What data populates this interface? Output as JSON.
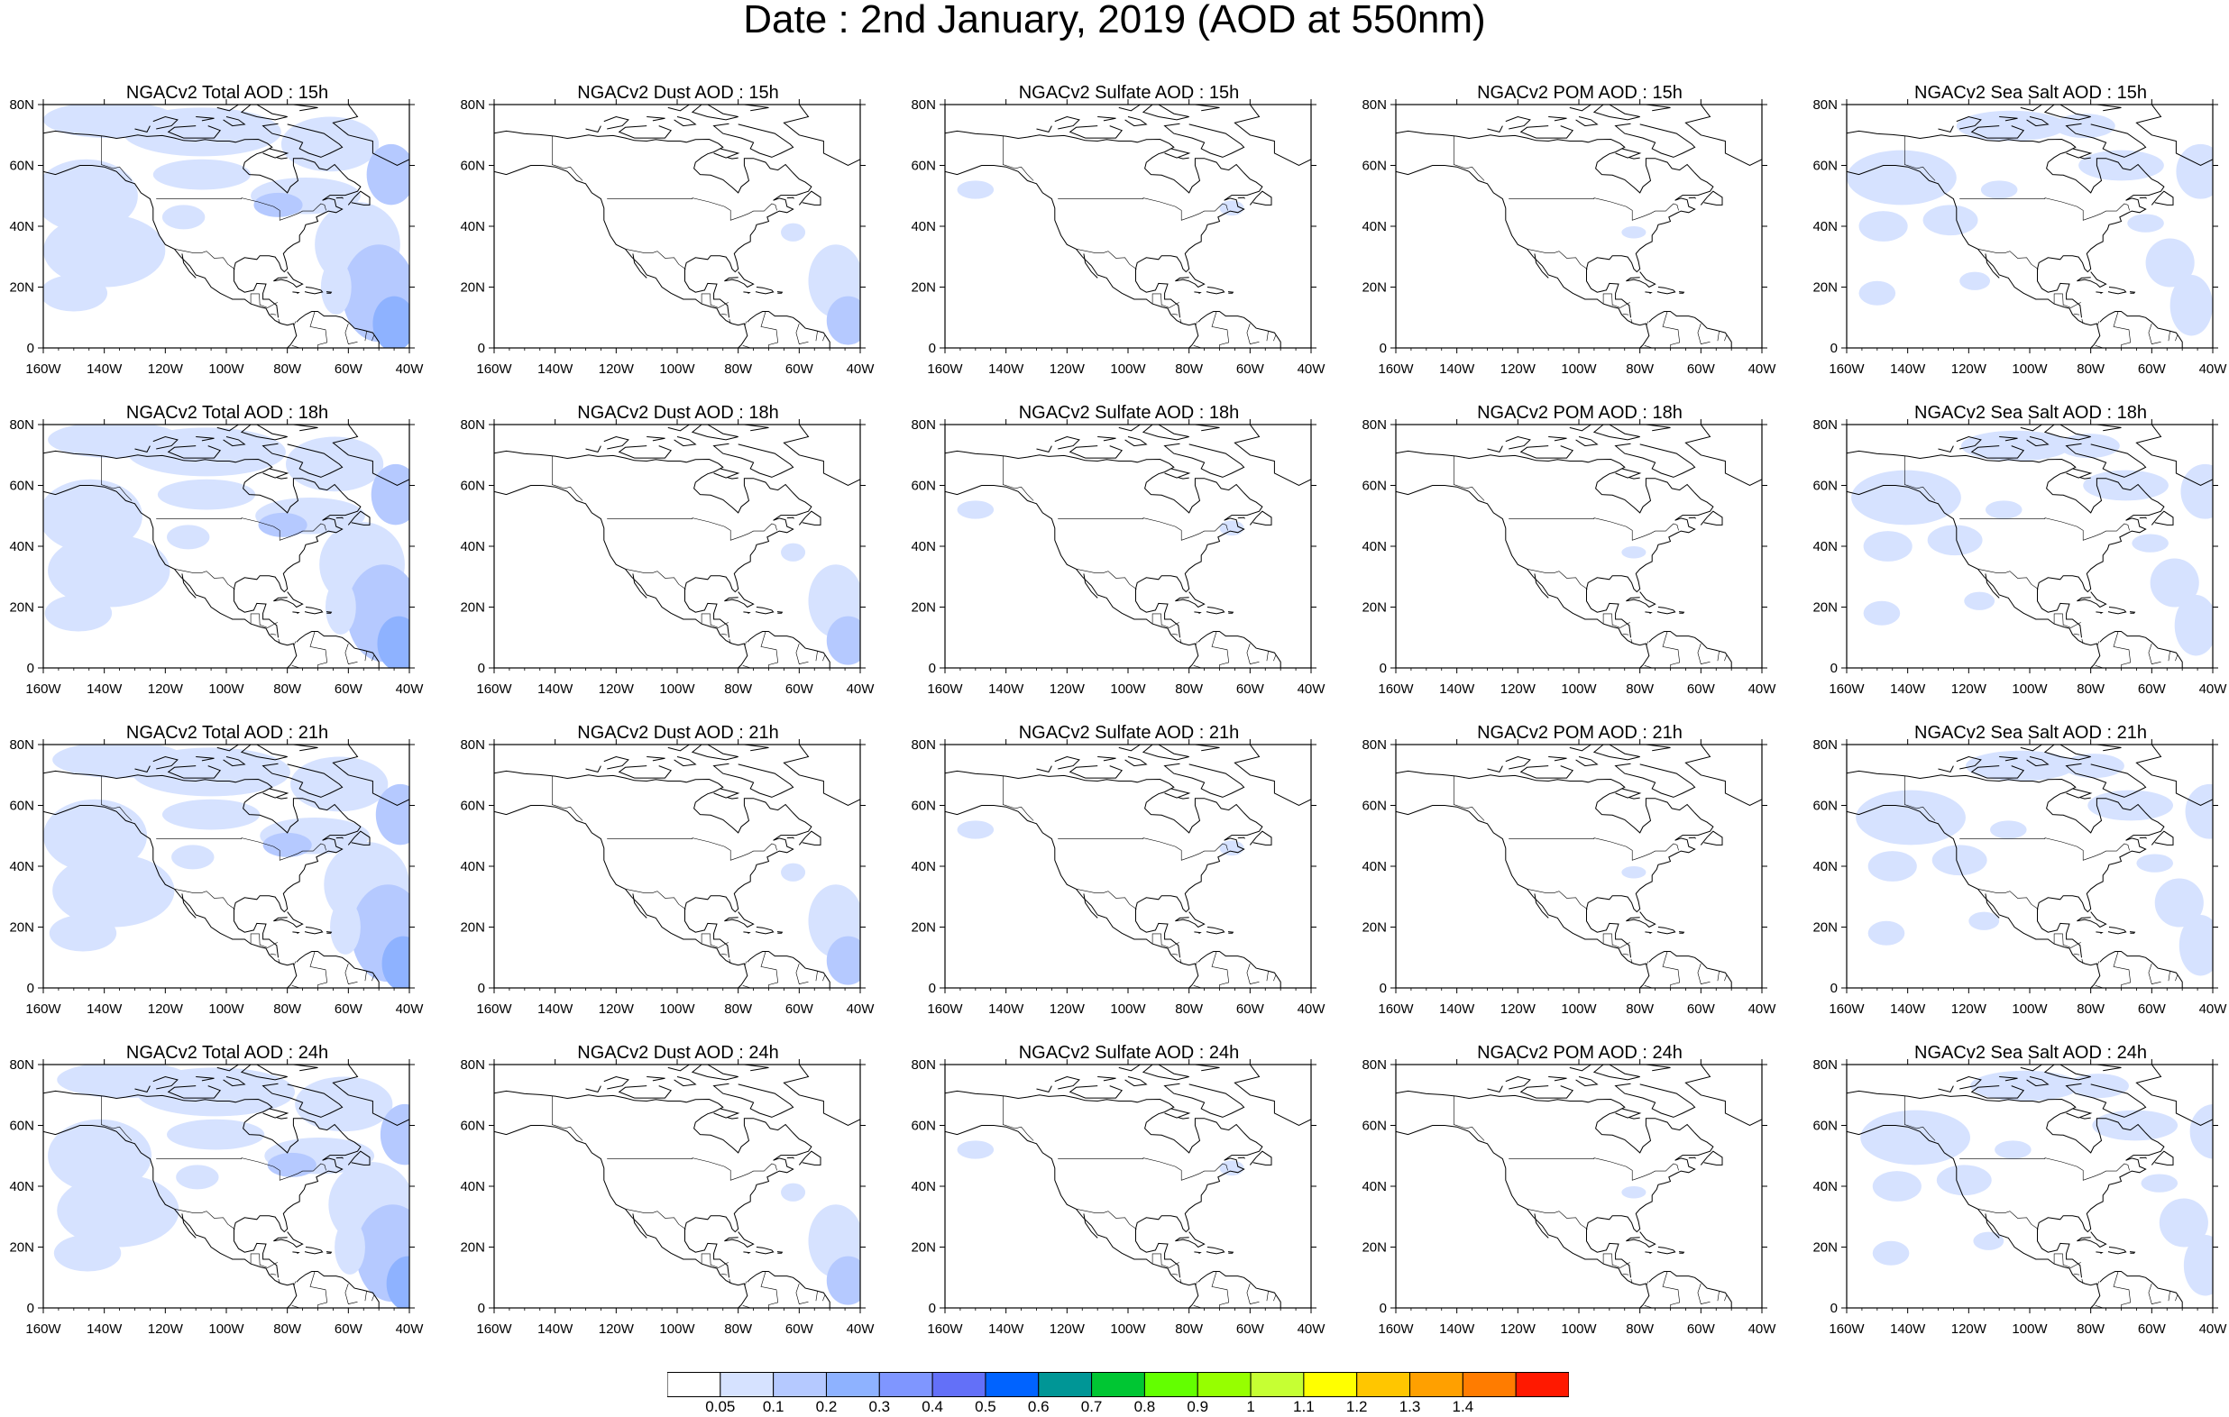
{
  "title": "Date : 2nd January, 2019 (AOD at 550nm)",
  "panels": [
    {
      "title": "NGACv2 Total AOD : 15h",
      "species": "total",
      "hour": "15h"
    },
    {
      "title": "NGACv2 Dust AOD : 15h",
      "species": "dust",
      "hour": "15h"
    },
    {
      "title": "NGACv2 Sulfate AOD : 15h",
      "species": "sulfate",
      "hour": "15h"
    },
    {
      "title": "NGACv2 POM AOD : 15h",
      "species": "pom",
      "hour": "15h"
    },
    {
      "title": "NGACv2 Sea Salt AOD : 15h",
      "species": "seasalt",
      "hour": "15h"
    },
    {
      "title": "NGACv2 Total AOD : 18h",
      "species": "total",
      "hour": "18h"
    },
    {
      "title": "NGACv2 Dust AOD : 18h",
      "species": "dust",
      "hour": "18h"
    },
    {
      "title": "NGACv2 Sulfate AOD : 18h",
      "species": "sulfate",
      "hour": "18h"
    },
    {
      "title": "NGACv2 POM AOD : 18h",
      "species": "pom",
      "hour": "18h"
    },
    {
      "title": "NGACv2 Sea Salt AOD : 18h",
      "species": "seasalt",
      "hour": "18h"
    },
    {
      "title": "NGACv2 Total AOD : 21h",
      "species": "total",
      "hour": "21h"
    },
    {
      "title": "NGACv2 Dust AOD : 21h",
      "species": "dust",
      "hour": "21h"
    },
    {
      "title": "NGACv2 Sulfate AOD : 21h",
      "species": "sulfate",
      "hour": "21h"
    },
    {
      "title": "NGACv2 POM AOD : 21h",
      "species": "pom",
      "hour": "21h"
    },
    {
      "title": "NGACv2 Sea Salt AOD : 21h",
      "species": "seasalt",
      "hour": "21h"
    },
    {
      "title": "NGACv2 Total AOD : 24h",
      "species": "total",
      "hour": "24h"
    },
    {
      "title": "NGACv2 Dust AOD : 24h",
      "species": "dust",
      "hour": "24h"
    },
    {
      "title": "NGACv2 Sulfate AOD : 24h",
      "species": "sulfate",
      "hour": "24h"
    },
    {
      "title": "NGACv2 POM AOD : 24h",
      "species": "pom",
      "hour": "24h"
    },
    {
      "title": "NGACv2 Sea Salt  AOD : 24h",
      "species": "seasalt",
      "hour": "24h"
    }
  ],
  "axes": {
    "lon_ticks": [
      "160W",
      "140W",
      "120W",
      "100W",
      "80W",
      "60W",
      "40W"
    ],
    "lat_ticks": [
      "80N",
      "60N",
      "40N",
      "20N",
      "0"
    ],
    "lon_range": [
      -160,
      -40
    ],
    "lat_range": [
      0,
      80
    ]
  },
  "colorbar": {
    "levels": [
      "0.05",
      "0.1",
      "0.2",
      "0.3",
      "0.4",
      "0.5",
      "0.6",
      "0.7",
      "0.8",
      "0.9",
      "1",
      "1.1",
      "1.2",
      "1.3",
      "1.4"
    ],
    "colors": [
      "#ffffff",
      "#d6e2ff",
      "#b5c9ff",
      "#8eb2ff",
      "#7f96ff",
      "#6370f8",
      "#0063ff",
      "#009696",
      "#00c633",
      "#63ff00",
      "#96ff00",
      "#c6ff33",
      "#ffff00",
      "#ffc600",
      "#ffa000",
      "#ff7c00",
      "#ff1900"
    ]
  }
}
